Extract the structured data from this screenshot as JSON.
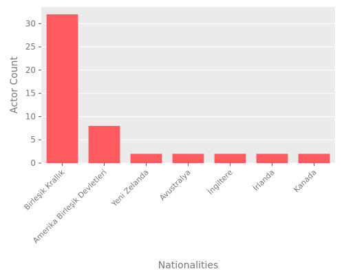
{
  "chart_data": {
    "type": "bar",
    "title": "",
    "xlabel": "Nationalities",
    "ylabel": "Actor Count",
    "categories": [
      "Birleşik Krallık",
      "Amerika Birleşik Devletleri",
      "Yeni Zelanda",
      "Avustralya",
      "İngiltere",
      "İrlanda",
      "Kanada"
    ],
    "values": [
      32,
      8,
      2,
      2,
      2,
      2,
      2
    ],
    "ylim": [
      0,
      33.6
    ],
    "yticks": [
      "0",
      "5",
      "10",
      "15",
      "20",
      "25",
      "30"
    ],
    "grid": true,
    "legend": "none",
    "colors": {
      "bar": "#ff5a5f",
      "plot_background": "#ebebeb",
      "grid": "#ffffff",
      "text": "#777777"
    }
  }
}
